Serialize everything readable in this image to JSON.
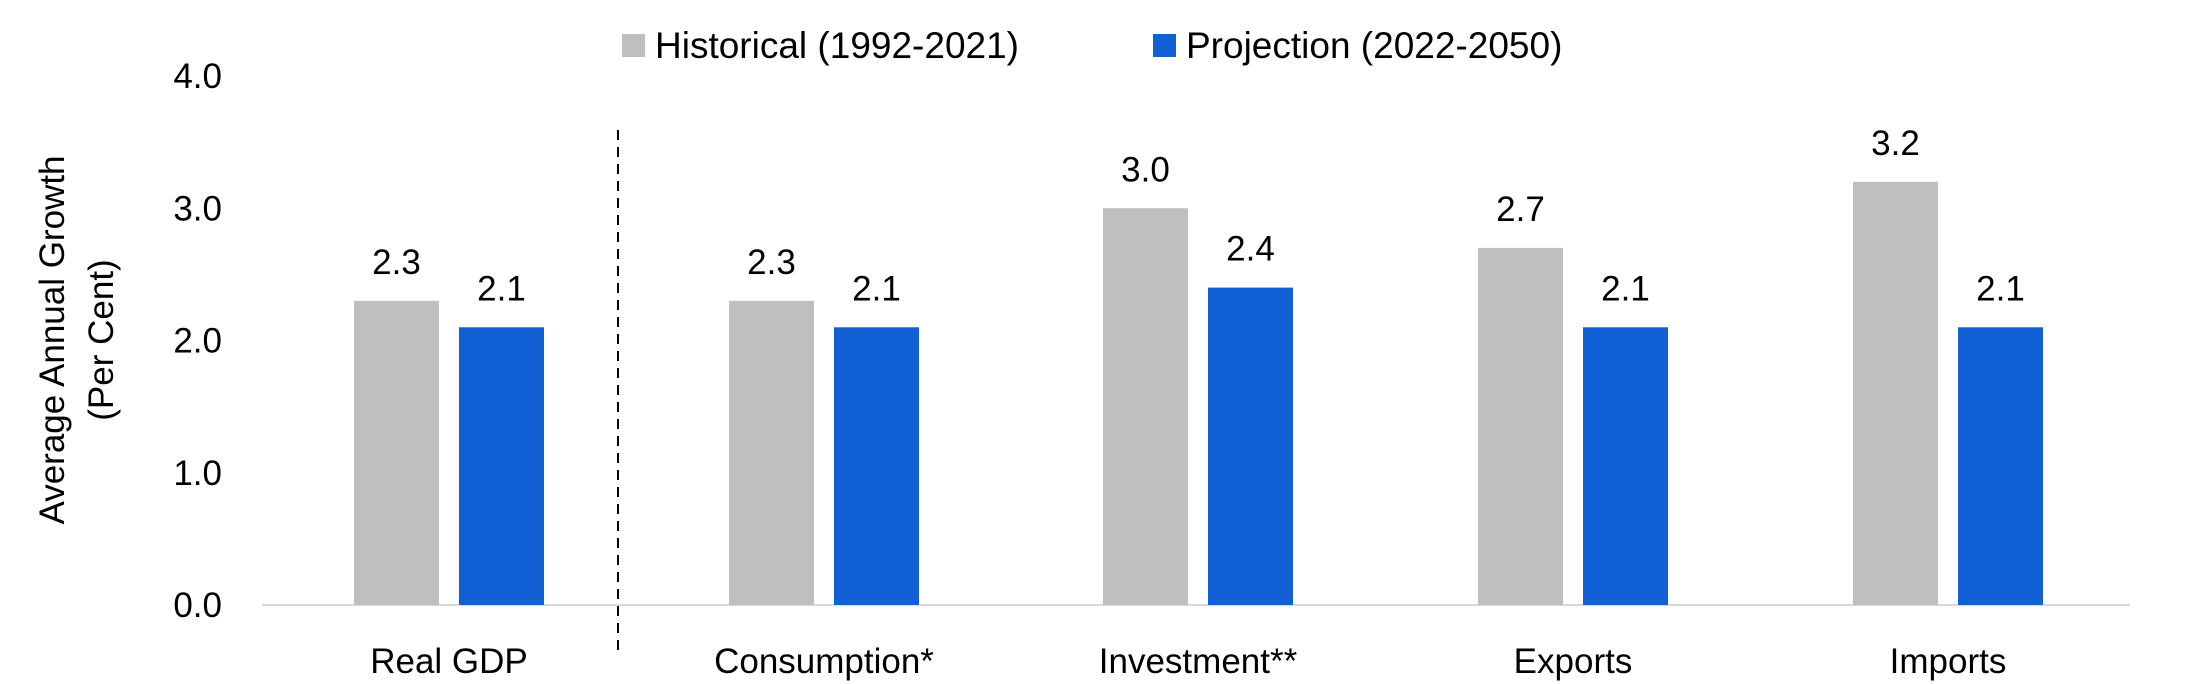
{
  "chart_data": {
    "type": "bar",
    "title": "",
    "xlabel": "",
    "ylabel": [
      "Average Annual Growth",
      "(Per Cent)"
    ],
    "ylim": [
      0,
      4
    ],
    "yticks": [
      "0.0",
      "1.0",
      "2.0",
      "3.0",
      "4.0"
    ],
    "grid": false,
    "legend_position": "top",
    "categories": [
      "Real GDP",
      "Consumption*",
      "Investment**",
      "Exports",
      "Imports"
    ],
    "series": [
      {
        "name": "Historical (1992-2021)",
        "color": "#bfbfbf",
        "values": [
          2.3,
          2.3,
          3.0,
          2.7,
          3.2
        ],
        "labels": [
          "2.3",
          "2.3",
          "3.0",
          "2.7",
          "3.2"
        ]
      },
      {
        "name": "Projection (2022-2050)",
        "color": "#1260d6",
        "values": [
          2.1,
          2.1,
          2.4,
          2.1,
          2.1
        ],
        "labels": [
          "2.1",
          "2.1",
          "2.4",
          "2.1",
          "2.1"
        ]
      }
    ],
    "separator_after_category": "Real GDP"
  }
}
